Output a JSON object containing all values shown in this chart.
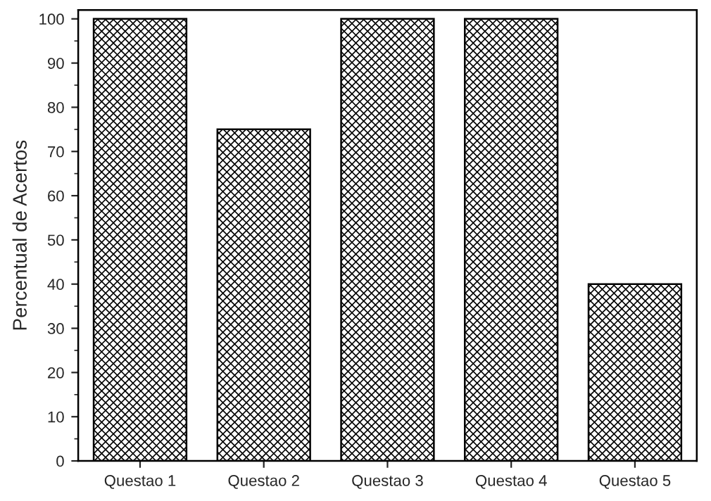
{
  "chart_data": {
    "type": "bar",
    "ylabel": "Percentual de Acertos",
    "categories": [
      "Questao 1",
      "Questao 2",
      "Questao 3",
      "Questao 4",
      "Questao 5"
    ],
    "values": [
      100,
      75,
      100,
      100,
      40
    ],
    "color": "#000000",
    "ylim": [
      0,
      102
    ],
    "yticks": [
      0,
      10,
      20,
      30,
      40,
      50,
      60,
      70,
      80,
      90,
      100
    ],
    "grid": false,
    "legend": false
  }
}
